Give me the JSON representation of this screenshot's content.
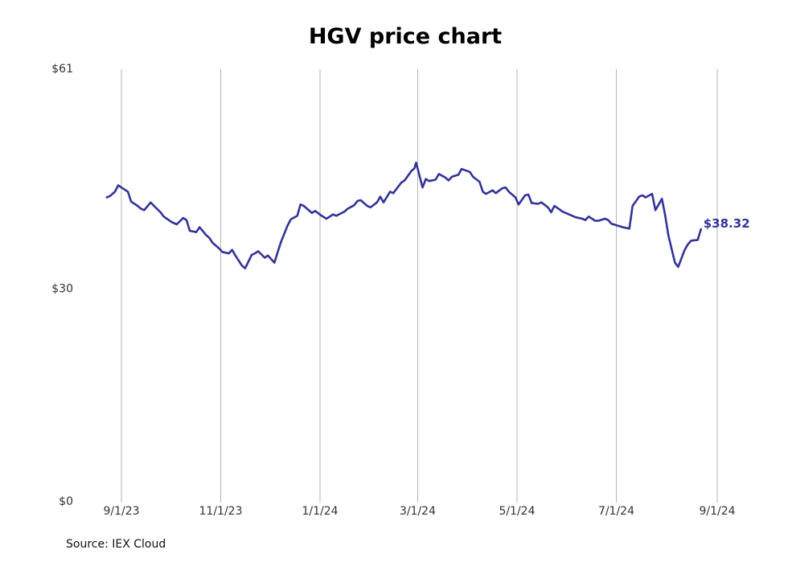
{
  "chart_data": {
    "type": "line",
    "title": "HGV price chart",
    "source": "Source: IEX Cloud",
    "accent_color": "#333399",
    "grid": "vertical",
    "ylim": [
      0,
      61
    ],
    "y_ticks": [
      {
        "value": 0,
        "label": "$0"
      },
      {
        "value": 30,
        "label": "$30"
      },
      {
        "value": 61,
        "label": "$61"
      }
    ],
    "x_ticks": [
      {
        "date": "2023-09-01",
        "label": "9/1/23"
      },
      {
        "date": "2023-11-01",
        "label": "11/1/23"
      },
      {
        "date": "2024-01-01",
        "label": "1/1/24"
      },
      {
        "date": "2024-03-01",
        "label": "3/1/24"
      },
      {
        "date": "2024-05-01",
        "label": "5/1/24"
      },
      {
        "date": "2024-07-01",
        "label": "7/1/24"
      },
      {
        "date": "2024-09-01",
        "label": "9/1/24"
      }
    ],
    "last_value_label": "$38.32",
    "series": [
      {
        "dates": [
          "2023-08-23",
          "2023-08-25",
          "2023-08-28",
          "2023-08-30",
          "2023-09-01",
          "2023-09-05",
          "2023-09-07",
          "2023-09-11",
          "2023-09-13",
          "2023-09-15",
          "2023-09-19",
          "2023-09-21",
          "2023-09-25",
          "2023-09-27",
          "2023-10-02",
          "2023-10-05",
          "2023-10-09",
          "2023-10-11",
          "2023-10-13",
          "2023-10-17",
          "2023-10-19",
          "2023-10-23",
          "2023-10-25",
          "2023-10-27",
          "2023-10-31",
          "2023-11-02",
          "2023-11-06",
          "2023-11-08",
          "2023-11-10",
          "2023-11-14",
          "2023-11-16",
          "2023-11-20",
          "2023-11-22",
          "2023-11-24",
          "2023-11-28",
          "2023-11-30",
          "2023-12-04",
          "2023-12-06",
          "2023-12-08",
          "2023-12-12",
          "2023-12-14",
          "2023-12-18",
          "2023-12-20",
          "2023-12-22",
          "2023-12-27",
          "2023-12-29",
          "2024-01-02",
          "2024-01-05",
          "2024-01-09",
          "2024-01-11",
          "2024-01-16",
          "2024-01-18",
          "2024-01-22",
          "2024-01-24",
          "2024-01-26",
          "2024-01-30",
          "2024-02-01",
          "2024-02-05",
          "2024-02-07",
          "2024-02-09",
          "2024-02-13",
          "2024-02-15",
          "2024-02-20",
          "2024-02-22",
          "2024-02-26",
          "2024-02-28",
          "2024-02-29",
          "2024-03-04",
          "2024-03-06",
          "2024-03-08",
          "2024-03-12",
          "2024-03-14",
          "2024-03-18",
          "2024-03-20",
          "2024-03-22",
          "2024-03-26",
          "2024-03-28",
          "2024-04-02",
          "2024-04-04",
          "2024-04-08",
          "2024-04-10",
          "2024-04-12",
          "2024-04-16",
          "2024-04-18",
          "2024-04-22",
          "2024-04-24",
          "2024-04-26",
          "2024-04-30",
          "2024-05-02",
          "2024-05-06",
          "2024-05-08",
          "2024-05-10",
          "2024-05-14",
          "2024-05-16",
          "2024-05-20",
          "2024-05-22",
          "2024-05-24",
          "2024-05-29",
          "2024-05-31",
          "2024-06-04",
          "2024-06-06",
          "2024-06-10",
          "2024-06-12",
          "2024-06-14",
          "2024-06-18",
          "2024-06-20",
          "2024-06-24",
          "2024-06-26",
          "2024-06-28",
          "2024-07-02",
          "2024-07-05",
          "2024-07-09",
          "2024-07-11",
          "2024-07-15",
          "2024-07-17",
          "2024-07-19",
          "2024-07-23",
          "2024-07-25",
          "2024-07-29",
          "2024-07-31",
          "2024-08-02",
          "2024-08-06",
          "2024-08-08",
          "2024-08-12",
          "2024-08-14",
          "2024-08-16",
          "2024-08-20",
          "2024-08-22"
        ],
        "values": [
          42.8,
          43.0,
          43.6,
          44.5,
          44.2,
          43.6,
          42.2,
          41.6,
          41.2,
          41.0,
          42.1,
          41.6,
          40.7,
          40.1,
          39.3,
          39.0,
          39.9,
          39.6,
          38.1,
          37.9,
          38.6,
          37.5,
          37.1,
          36.4,
          35.6,
          35.1,
          34.9,
          35.4,
          34.6,
          33.2,
          32.8,
          34.7,
          34.9,
          35.2,
          34.3,
          34.6,
          33.6,
          35.1,
          36.5,
          38.8,
          39.7,
          40.2,
          41.8,
          41.6,
          40.6,
          40.9,
          40.2,
          39.8,
          40.4,
          40.2,
          40.8,
          41.2,
          41.7,
          42.3,
          42.4,
          41.6,
          41.4,
          42.1,
          42.9,
          42.1,
          43.6,
          43.4,
          44.9,
          45.2,
          46.5,
          46.9,
          47.7,
          44.2,
          45.4,
          45.1,
          45.3,
          46.1,
          45.6,
          45.2,
          45.7,
          46.0,
          46.8,
          46.4,
          45.7,
          45.0,
          43.6,
          43.3,
          43.8,
          43.4,
          44.1,
          44.2,
          43.6,
          42.8,
          41.8,
          43.1,
          43.2,
          42.0,
          41.9,
          42.1,
          41.4,
          40.7,
          41.6,
          40.8,
          40.6,
          40.2,
          40.0,
          39.8,
          39.6,
          40.1,
          39.5,
          39.5,
          39.8,
          39.6,
          39.1,
          38.8,
          38.6,
          38.4,
          41.6,
          42.9,
          43.1,
          42.8,
          43.3,
          41.0,
          42.6,
          40.3,
          37.4,
          33.6,
          33.0,
          35.4,
          36.2,
          36.7,
          36.8,
          38.32
        ]
      }
    ]
  }
}
